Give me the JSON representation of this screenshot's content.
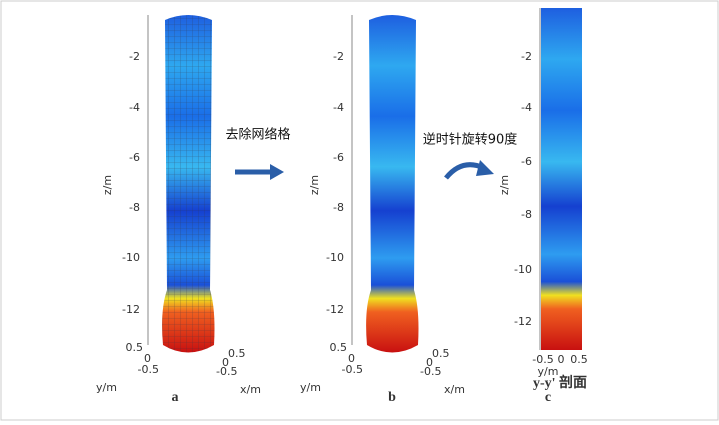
{
  "panels": [
    {
      "caption": "a",
      "z_label": "z/m",
      "z_ticks": [
        "-2",
        "-4",
        "-6",
        "-8",
        "-10",
        "-12"
      ],
      "x_label": "x/m",
      "y_label": "y/m",
      "x_ticks": [
        "0.5",
        "0",
        "-0.5"
      ],
      "y_ticks": [
        "0.5",
        "0",
        "-0.5"
      ]
    },
    {
      "caption": "b",
      "z_label": "z/m",
      "z_ticks": [
        "-2",
        "-4",
        "-6",
        "-8",
        "-10",
        "-12"
      ],
      "x_label": "x/m",
      "y_label": "y/m",
      "x_ticks": [
        "0.5",
        "0",
        "-0.5"
      ],
      "y_ticks": [
        "0.5",
        "0",
        "-0.5"
      ]
    },
    {
      "caption": "c",
      "z_label": "z/m",
      "z_ticks": [
        "-2",
        "-4",
        "-6",
        "-8",
        "-10",
        "-12"
      ],
      "x_label": "y/m",
      "x_ticks": [
        "-0.5",
        "0",
        "0.5"
      ],
      "section_label": "y-y' 剖面"
    }
  ],
  "arrows": [
    {
      "label": "去除网络格"
    },
    {
      "label": "逆时针旋转90度"
    }
  ]
}
